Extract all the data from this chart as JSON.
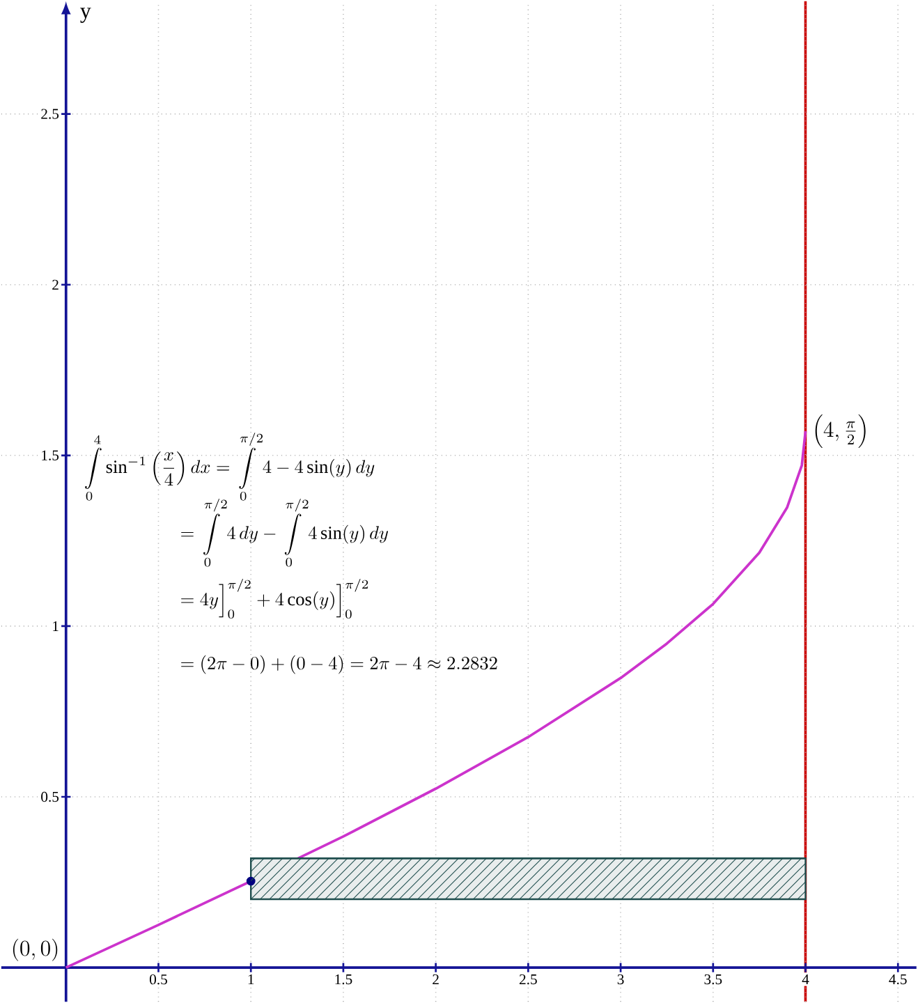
{
  "chart_data": {
    "type": "line",
    "ylabel": "y",
    "xlim": [
      -0.35,
      4.6
    ],
    "ylim": [
      -0.1,
      2.83
    ],
    "xticks": [
      0.5,
      1,
      1.5,
      2,
      2.5,
      3,
      3.5,
      4,
      4.5
    ],
    "yticks": [
      0.5,
      1,
      1.5,
      2,
      2.5
    ],
    "grid": true,
    "series": [
      {
        "color": "#cc33cc",
        "marker": "none",
        "x": [
          0,
          0.5,
          1,
          1.5,
          2,
          2.5,
          3,
          3.25,
          3.5,
          3.75,
          3.9,
          3.98,
          4
        ],
        "values": [
          0,
          0.125,
          0.253,
          0.384,
          0.524,
          0.675,
          0.848,
          0.949,
          1.065,
          1.215,
          1.347,
          1.471,
          1.571
        ]
      },
      {
        "type": "line",
        "color": "#1f4e4e",
        "marker": "none",
        "x": [
          1,
          4
        ],
        "values": [
          0.32,
          0.32
        ],
        "lower": [
          0.2,
          0.2
        ],
        "upper": [
          0.32,
          0.32
        ]
      },
      {
        "type": "scatter",
        "color": "#00007f",
        "marker": "circle",
        "x": [
          1
        ],
        "values": [
          0.253
        ]
      }
    ],
    "ref_lines": [
      {
        "axis": "x",
        "value": 4,
        "color": "#cc0000"
      }
    ],
    "annotations": [
      {
        "text": "(0,0)",
        "x": 0,
        "y": 0
      },
      {
        "text": "\\left(4,\\frac{\\pi}{2}\\right)",
        "x": 4,
        "y": 1.571
      },
      "\\int\\limits_0^4 \\sin^{-1}\\left(\\frac{x}{4}\\right)dx=\\int\\limits_0^{\\pi/2} 4-4\\sin(y)\\,dy",
      "=\\int\\limits_0^{\\pi/2} 4\\,dy-\\int\\limits_0^{\\pi/2} 4\\sin(y)\\,dy",
      "=4y\\Big]_0^{\\pi/2}+4\\cos(y)\\Big]_0^{\\pi/2}",
      "=(2\\pi-0)+(0-4)=2\\pi-4\\approx 2.2832"
    ]
  }
}
